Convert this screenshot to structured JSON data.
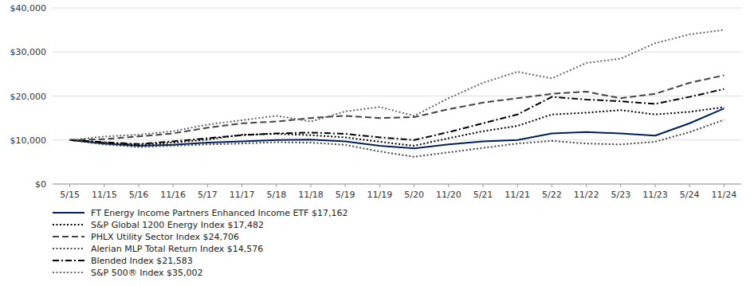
{
  "chart_data": {
    "type": "line",
    "categories": [
      "5/15",
      "11/15",
      "5/16",
      "11/16",
      "5/17",
      "11/17",
      "5/18",
      "11/18",
      "5/19",
      "11/19",
      "5/20",
      "11/20",
      "5/21",
      "11/21",
      "5/22",
      "11/22",
      "5/23",
      "11/23",
      "5/24",
      "11/24"
    ],
    "ylim": [
      0,
      40000
    ],
    "yticks": [
      {
        "value": 0,
        "label": "$0"
      },
      {
        "value": 10000,
        "label": "$10,000"
      },
      {
        "value": 20000,
        "label": "$20,000"
      },
      {
        "value": 30000,
        "label": "$30,000"
      },
      {
        "value": 40000,
        "label": "$40,000"
      }
    ],
    "grid": true,
    "legend": "bottom",
    "series": [
      {
        "name": "FT Energy Income Partners Enhanced Income ETF $17,162",
        "color": "#00205B",
        "line_style": "solid",
        "values": [
          10000,
          9200,
          8700,
          8900,
          9400,
          9700,
          10000,
          10100,
          9700,
          8700,
          8100,
          9000,
          9700,
          10000,
          11500,
          11800,
          11500,
          11000,
          13800,
          17162
        ]
      },
      {
        "name": "S&P Global 1200 Energy Index $17,482",
        "color": "#000000",
        "line_style": "dotted",
        "values": [
          10000,
          9400,
          8900,
          9400,
          10100,
          11200,
          11400,
          11100,
          10600,
          9600,
          8700,
          10400,
          12000,
          13200,
          15800,
          16200,
          16800,
          15800,
          16400,
          17482
        ]
      },
      {
        "name": "PHLX Utility Sector Index $24,706",
        "color": "#444444",
        "line_style": "dashed",
        "values": [
          10000,
          10200,
          10800,
          11500,
          12800,
          13800,
          14200,
          15000,
          15500,
          15000,
          15200,
          17000,
          18500,
          19500,
          20500,
          21000,
          19500,
          20500,
          23000,
          24706
        ]
      },
      {
        "name": "Alerian MLP Total Return Index $14,576",
        "color": "#444444",
        "line_style": "dotted",
        "values": [
          10000,
          9000,
          8400,
          8700,
          9000,
          9200,
          9500,
          9400,
          8900,
          7400,
          6200,
          7200,
          8200,
          9200,
          9800,
          9200,
          9000,
          9600,
          11800,
          14576
        ]
      },
      {
        "name": "Blended Index $21,583",
        "color": "#000000",
        "line_style": "dashdot",
        "values": [
          10000,
          9500,
          9100,
          9700,
          10400,
          11100,
          11500,
          11700,
          11400,
          10600,
          10000,
          11800,
          13800,
          15800,
          19800,
          19200,
          18800,
          18200,
          19800,
          21583
        ]
      },
      {
        "name": "S&P 500® Index $35,002",
        "color": "#666666",
        "line_style": "dotted",
        "values": [
          10000,
          10800,
          11200,
          12000,
          13500,
          14500,
          15500,
          14200,
          16500,
          17500,
          15500,
          19500,
          23000,
          25500,
          24000,
          27500,
          28500,
          32000,
          34000,
          35002
        ]
      }
    ]
  }
}
